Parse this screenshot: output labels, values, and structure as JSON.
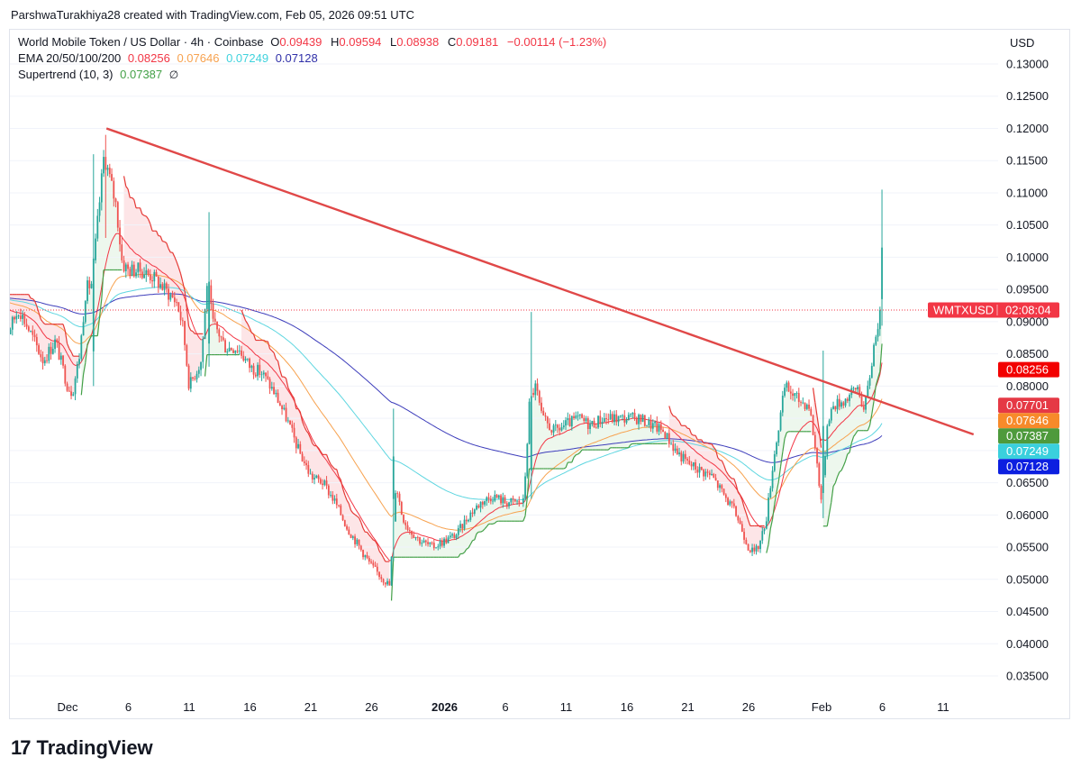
{
  "header": {
    "creator": "ParshwaTurakhiya28 created with TradingView.com, Feb 05, 2026 09:51 UTC"
  },
  "legend": {
    "symbol": "World Mobile Token / US Dollar · 4h · Coinbase",
    "ohlc": [
      {
        "key": "O",
        "value": "0.09439"
      },
      {
        "key": "H",
        "value": "0.09594"
      },
      {
        "key": "L",
        "value": "0.08938"
      },
      {
        "key": "C",
        "value": "0.09181"
      }
    ],
    "change": "−0.00114 (−1.23%)",
    "ema_label": "EMA 20/50/100/200",
    "ema_values": [
      "0.08256",
      "0.07646",
      "0.07249",
      "0.07128"
    ],
    "supertrend_label": "Supertrend (10, 3)",
    "supertrend_value": "0.07387",
    "supertrend_icon": "∅"
  },
  "axis": {
    "currency": "USD"
  },
  "brand": {
    "mark": "17",
    "name": "TradingView"
  },
  "colors": {
    "up": "#26a69a",
    "down": "#ef5350",
    "ema20": "#f23645",
    "ema50": "#f7a24f",
    "ema100": "#5ed6e0",
    "ema200": "#3d3dbb",
    "supertrend_up": "#43a047",
    "supertrend_down": "#e53935",
    "trendline": "#e04848"
  },
  "chart_data": {
    "type": "candlestick",
    "y_ticks": [
      "0.13000",
      "0.12500",
      "0.12000",
      "0.11500",
      "0.11000",
      "0.10500",
      "0.10000",
      "0.09500",
      "0.09000",
      "0.08500",
      "0.08000",
      "0.07500",
      "0.07000",
      "0.06500",
      "0.06000",
      "0.05500",
      "0.05000",
      "0.04500",
      "0.04000",
      "0.03500"
    ],
    "ylim": [
      0.0325,
      0.1325
    ],
    "x_ticks": [
      {
        "label": "Dec",
        "day": 1
      },
      {
        "label": "6",
        "day": 6
      },
      {
        "label": "11",
        "day": 11
      },
      {
        "label": "16",
        "day": 16
      },
      {
        "label": "21",
        "day": 21
      },
      {
        "label": "26",
        "day": 26
      },
      {
        "label": "2026",
        "day": 32,
        "bold": true
      },
      {
        "label": "6",
        "day": 37
      },
      {
        "label": "11",
        "day": 42
      },
      {
        "label": "16",
        "day": 47
      },
      {
        "label": "21",
        "day": 52
      },
      {
        "label": "26",
        "day": 57
      },
      {
        "label": "Feb",
        "day": 63
      },
      {
        "label": "6",
        "day": 68
      },
      {
        "label": "11",
        "day": 73
      }
    ],
    "price_path": [
      [
        -4.7,
        0.093
      ],
      [
        -4,
        0.088
      ],
      [
        -3,
        0.092
      ],
      [
        -2,
        0.088
      ],
      [
        -1,
        0.084
      ],
      [
        0,
        0.087
      ],
      [
        1,
        0.08
      ],
      [
        1.4,
        0.079
      ],
      [
        2,
        0.085
      ],
      [
        2.5,
        0.095
      ],
      [
        3,
        0.096
      ],
      [
        4,
        0.116
      ],
      [
        5,
        0.108
      ],
      [
        5.5,
        0.099
      ],
      [
        6,
        0.098
      ],
      [
        7,
        0.098
      ],
      [
        8,
        0.097
      ],
      [
        9,
        0.095
      ],
      [
        10,
        0.093
      ],
      [
        10.5,
        0.089
      ],
      [
        11,
        0.08
      ],
      [
        11.5,
        0.082
      ],
      [
        12,
        0.084
      ],
      [
        12.5,
        0.097
      ],
      [
        12.9,
        0.09
      ],
      [
        13.5,
        0.088
      ],
      [
        14,
        0.086
      ],
      [
        15,
        0.086
      ],
      [
        16,
        0.083
      ],
      [
        17,
        0.082
      ],
      [
        18,
        0.079
      ],
      [
        19,
        0.075
      ],
      [
        20,
        0.07
      ],
      [
        21,
        0.066
      ],
      [
        22,
        0.065
      ],
      [
        23,
        0.062
      ],
      [
        24,
        0.058
      ],
      [
        25,
        0.055
      ],
      [
        26,
        0.052
      ],
      [
        27,
        0.05
      ],
      [
        27.5,
        0.049
      ],
      [
        28,
        0.065
      ],
      [
        28.5,
        0.06
      ],
      [
        29,
        0.058
      ],
      [
        30,
        0.056
      ],
      [
        31,
        0.055
      ],
      [
        32,
        0.056
      ],
      [
        33,
        0.057
      ],
      [
        34,
        0.06
      ],
      [
        35,
        0.062
      ],
      [
        36,
        0.063
      ],
      [
        37,
        0.062
      ],
      [
        38,
        0.062
      ],
      [
        38.5,
        0.062
      ],
      [
        39,
        0.078
      ],
      [
        39.5,
        0.08
      ],
      [
        40,
        0.075
      ],
      [
        41,
        0.073
      ],
      [
        42,
        0.074
      ],
      [
        43,
        0.075
      ],
      [
        44,
        0.074
      ],
      [
        45,
        0.075
      ],
      [
        46,
        0.075
      ],
      [
        47,
        0.075
      ],
      [
        48,
        0.075
      ],
      [
        49,
        0.074
      ],
      [
        50,
        0.073
      ],
      [
        51,
        0.07
      ],
      [
        52,
        0.068
      ],
      [
        53,
        0.067
      ],
      [
        54,
        0.066
      ],
      [
        55,
        0.063
      ],
      [
        56,
        0.06
      ],
      [
        57,
        0.055
      ],
      [
        57.5,
        0.054
      ],
      [
        58,
        0.056
      ],
      [
        58.5,
        0.06
      ],
      [
        59,
        0.068
      ],
      [
        60,
        0.08
      ],
      [
        61,
        0.078
      ],
      [
        62,
        0.077
      ],
      [
        62.5,
        0.07
      ],
      [
        63,
        0.062
      ],
      [
        63.5,
        0.075
      ],
      [
        64,
        0.077
      ],
      [
        65,
        0.078
      ],
      [
        66,
        0.08
      ],
      [
        66.5,
        0.076
      ],
      [
        67,
        0.082
      ],
      [
        67.5,
        0.089
      ],
      [
        68,
        0.092
      ]
    ],
    "spikes": [
      {
        "day": 3.1,
        "high": 0.116,
        "low": 0.08
      },
      {
        "day": 4.2,
        "high": 0.119,
        "low": 0.103
      },
      {
        "day": 12.7,
        "high": 0.107,
        "low": 0.083
      },
      {
        "day": 27.8,
        "high": 0.0765,
        "low": 0.06
      },
      {
        "day": 39.1,
        "high": 0.0915,
        "low": 0.0625
      },
      {
        "day": 63.2,
        "high": 0.0855,
        "low": 0.0595
      },
      {
        "day": 67.9,
        "high": 0.1105,
        "low": 0.0905
      }
    ],
    "trendline": {
      "start_day": 4.2,
      "start_price": 0.12,
      "end_day": 75.5,
      "end_price": 0.0725
    },
    "ema_values_at_last": [
      0.08256,
      0.07646,
      0.07249,
      0.07128
    ],
    "supertrend_last": 0.07387,
    "last_price": 0.09181,
    "price_tags": [
      {
        "label": "WMTXUSD",
        "extra": "02:08:04",
        "price": 0.09181,
        "color": "#f23645"
      },
      {
        "label": "0.08256",
        "price": 0.08256,
        "color": "#f20000"
      },
      {
        "label": "0.07701",
        "price": 0.07701,
        "color": "#e53945"
      },
      {
        "label": "0.07646",
        "price": 0.07646,
        "color": "#f78a2a"
      },
      {
        "label": "0.07387",
        "price": 0.07387,
        "color": "#4e9a3c"
      },
      {
        "label": "0.07249",
        "price": 0.07249,
        "color": "#3ad0dd"
      },
      {
        "label": "0.07128",
        "price": 0.07128,
        "color": "#0c1fe0"
      }
    ]
  }
}
